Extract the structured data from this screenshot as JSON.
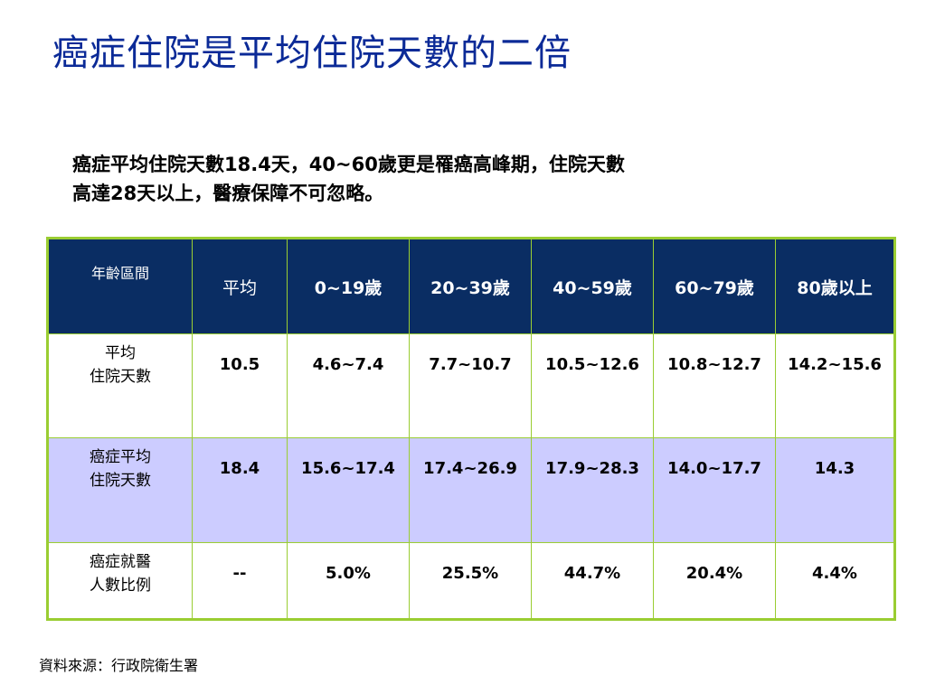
{
  "slide": {
    "title": "癌症住院是平均住院天數的二倍",
    "subtitle_line1": "癌症平均住院天數18.4天，40~60歲更是罹癌高峰期，住院天數",
    "subtitle_line2": "高達28天以上，醫療保障不可忽略。",
    "source": "資料來源：行政院衛生署",
    "colors": {
      "title": "#0b2a97",
      "header_bg": "#0a2d63",
      "border": "#9acd32",
      "highlight_row": "#ccccff"
    }
  },
  "table": {
    "headers": [
      "年齡區間",
      "平均",
      "0~19歲",
      "20~39歲",
      "40~59歲",
      "60~79歲",
      "80歲以上"
    ],
    "rows": [
      {
        "label_line1": "平均",
        "label_line2": "住院天數",
        "cells": [
          "10.5",
          "4.6~7.4",
          "7.7~10.7",
          "10.5~12.6",
          "10.8~12.7",
          "14.2~15.6"
        ]
      },
      {
        "label_line1": "癌症平均",
        "label_line2": "住院天數",
        "cells": [
          "18.4",
          "15.6~17.4",
          "17.4~26.9",
          "17.9~28.3",
          "14.0~17.7",
          "14.3"
        ]
      },
      {
        "label_line1": "癌症就醫",
        "label_line2": "人數比例",
        "cells": [
          "--",
          "5.0%",
          "25.5%",
          "44.7%",
          "20.4%",
          "4.4%"
        ]
      }
    ]
  }
}
